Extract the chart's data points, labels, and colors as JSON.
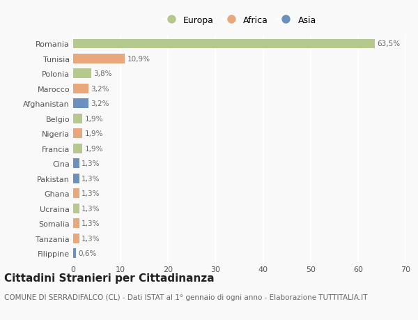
{
  "countries": [
    "Romania",
    "Tunisia",
    "Polonia",
    "Marocco",
    "Afghanistan",
    "Belgio",
    "Nigeria",
    "Francia",
    "Cina",
    "Pakistan",
    "Ghana",
    "Ucraina",
    "Somalia",
    "Tanzania",
    "Filippine"
  ],
  "values": [
    63.5,
    10.9,
    3.8,
    3.2,
    3.2,
    1.9,
    1.9,
    1.9,
    1.3,
    1.3,
    1.3,
    1.3,
    1.3,
    1.3,
    0.6
  ],
  "labels": [
    "63,5%",
    "10,9%",
    "3,8%",
    "3,2%",
    "3,2%",
    "1,9%",
    "1,9%",
    "1,9%",
    "1,3%",
    "1,3%",
    "1,3%",
    "1,3%",
    "1,3%",
    "1,3%",
    "0,6%"
  ],
  "continents": [
    "Europa",
    "Africa",
    "Europa",
    "Africa",
    "Asia",
    "Europa",
    "Africa",
    "Europa",
    "Asia",
    "Asia",
    "Africa",
    "Europa",
    "Africa",
    "Africa",
    "Asia"
  ],
  "colors": {
    "Europa": "#b5c98e",
    "Africa": "#e8a87c",
    "Asia": "#6b8fbe"
  },
  "legend_labels": [
    "Europa",
    "Africa",
    "Asia"
  ],
  "legend_colors": [
    "#b5c98e",
    "#e8a87c",
    "#6b8fbe"
  ],
  "xlim": [
    0,
    70
  ],
  "xticks": [
    0,
    10,
    20,
    30,
    40,
    50,
    60,
    70
  ],
  "title": "Cittadini Stranieri per Cittadinanza",
  "subtitle": "COMUNE DI SERRADIFALCO (CL) - Dati ISTAT al 1° gennaio di ogni anno - Elaborazione TUTTITALIA.IT",
  "background_color": "#f9f9f9",
  "grid_color": "#ffffff",
  "bar_height": 0.65,
  "title_fontsize": 11,
  "subtitle_fontsize": 7.5,
  "label_fontsize": 7.5,
  "tick_fontsize": 8,
  "legend_fontsize": 9
}
